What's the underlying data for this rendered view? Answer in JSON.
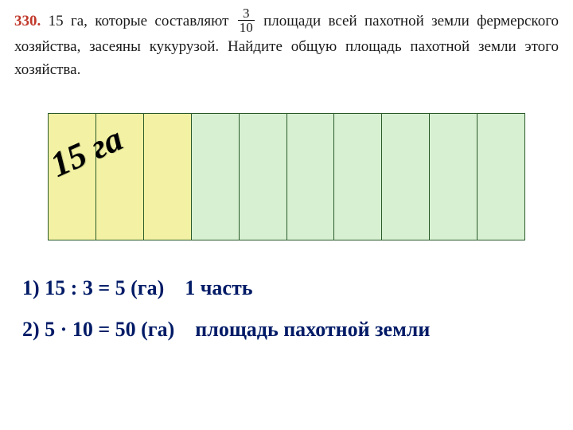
{
  "problem": {
    "number": "330.",
    "text_before_frac": "15 га, которые составляют",
    "frac_top": "3",
    "frac_bot": "10",
    "text_after_frac": "площади всей пахотной земли фермерского хозяйства, засеяны кукурузой. Найдите общую площадь пахотной земли этого хозяйства."
  },
  "diagram": {
    "total_parts": 10,
    "highlight_parts": 3,
    "highlight_color": "#f3f2a4",
    "rest_color": "#d7f0d1",
    "border_color": "#2a5a2a",
    "label": "15 га"
  },
  "steps": {
    "line1_calc": "1)  15 : 3 = 5 (га)",
    "line1_desc": "1 часть",
    "line2_calc": "2)  5 · 10 = 50 (га)",
    "line2_desc": "площадь пахотной земли",
    "text_color": "#001a66"
  }
}
